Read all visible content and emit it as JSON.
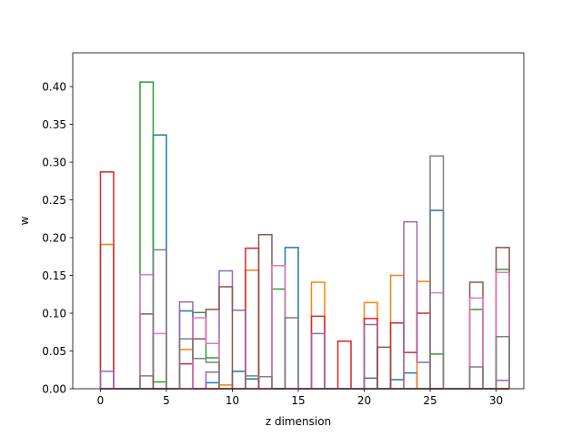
{
  "chart_data": {
    "type": "histogram-step",
    "xlabel": "z dimension",
    "ylabel": "w",
    "xlim": [
      -2.1,
      32.1
    ],
    "ylim": [
      0,
      0.4447
    ],
    "xticks": [
      0,
      5,
      10,
      15,
      20,
      25,
      30
    ],
    "yticks": [
      0.0,
      0.05,
      0.1,
      0.15,
      0.2,
      0.25,
      0.3,
      0.35,
      0.4
    ],
    "ytick_labels": [
      "0.00",
      "0.05",
      "0.10",
      "0.15",
      "0.20",
      "0.25",
      "0.30",
      "0.35",
      "0.40"
    ],
    "bin_start": 0,
    "bin_width": 1,
    "series": [
      {
        "color": "#1f77b4",
        "values": [
          0.0,
          0.0,
          0.0,
          0.0,
          0.336,
          0.0,
          0.103,
          0.0,
          0.008,
          0.0,
          0.023,
          0.013,
          0.0,
          0.0,
          0.187,
          0.0,
          0.0,
          0.0,
          0.0,
          0.0,
          0.014,
          0.0,
          0.012,
          0.021,
          0.0,
          0.236,
          0.0,
          0.0,
          0.0,
          0.0,
          0.0
        ]
      },
      {
        "color": "#ff7f0e",
        "values": [
          0.191,
          0.0,
          0.0,
          0.0,
          0.0,
          0.0,
          0.052,
          0.0,
          0.0,
          0.005,
          0.0,
          0.157,
          0.0,
          0.0,
          0.0,
          0.0,
          0.141,
          0.0,
          0.0,
          0.0,
          0.114,
          0.0,
          0.15,
          0.0,
          0.142,
          0.0,
          0.0,
          0.0,
          0.0,
          0.0,
          0.0
        ]
      },
      {
        "color": "#2ca02c",
        "values": [
          0.0,
          0.0,
          0.0,
          0.406,
          0.009,
          0.0,
          0.0,
          0.101,
          0.041,
          0.0,
          0.0,
          0.0,
          0.0,
          0.132,
          0.0,
          0.0,
          0.0,
          0.0,
          0.0,
          0.0,
          0.0,
          0.0,
          0.0,
          0.0,
          0.0,
          0.046,
          0.0,
          0.0,
          0.105,
          0.0,
          0.158
        ]
      },
      {
        "color": "#d62728",
        "values": [
          0.287,
          0.0,
          0.0,
          0.0,
          0.0,
          0.0,
          0.033,
          0.0,
          0.0,
          0.0,
          0.0,
          0.186,
          0.0,
          0.0,
          0.0,
          0.0,
          0.096,
          0.0,
          0.063,
          0.0,
          0.093,
          0.0,
          0.087,
          0.048,
          0.1,
          0.0,
          0.0,
          0.0,
          0.0,
          0.0,
          0.0
        ]
      },
      {
        "color": "#9467bd",
        "values": [
          0.023,
          0.0,
          0.0,
          0.0,
          0.0,
          0.0,
          0.115,
          0.0,
          0.022,
          0.156,
          0.104,
          0.0,
          0.0,
          0.0,
          0.0,
          0.0,
          0.073,
          0.0,
          0.0,
          0.0,
          0.085,
          0.0,
          0.0,
          0.221,
          0.035,
          0.0,
          0.0,
          0.0,
          0.0,
          0.0,
          0.011
        ]
      },
      {
        "color": "#8c564b",
        "values": [
          0.0,
          0.0,
          0.0,
          0.099,
          0.0,
          0.0,
          0.0,
          0.066,
          0.105,
          0.135,
          0.0,
          0.0,
          0.204,
          0.0,
          0.0,
          0.0,
          0.0,
          0.0,
          0.0,
          0.0,
          0.0,
          0.055,
          0.0,
          0.0,
          0.0,
          0.0,
          0.0,
          0.0,
          0.141,
          0.0,
          0.187
        ]
      },
      {
        "color": "#e377c2",
        "values": [
          0.0,
          0.0,
          0.0,
          0.151,
          0.073,
          0.0,
          0.0,
          0.094,
          0.06,
          0.0,
          0.0,
          0.0,
          0.0,
          0.163,
          0.0,
          0.0,
          0.0,
          0.0,
          0.0,
          0.0,
          0.0,
          0.0,
          0.0,
          0.0,
          0.0,
          0.127,
          0.0,
          0.0,
          0.12,
          0.0,
          0.154
        ]
      },
      {
        "color": "#7f7f7f",
        "values": [
          0.0,
          0.0,
          0.0,
          0.017,
          0.184,
          0.0,
          0.066,
          0.04,
          0.035,
          0.0,
          0.0,
          0.017,
          0.016,
          0.0,
          0.094,
          0.0,
          0.0,
          0.0,
          0.0,
          0.0,
          0.0,
          0.0,
          0.0,
          0.0,
          0.0,
          0.308,
          0.0,
          0.0,
          0.029,
          0.0,
          0.069
        ]
      }
    ]
  }
}
